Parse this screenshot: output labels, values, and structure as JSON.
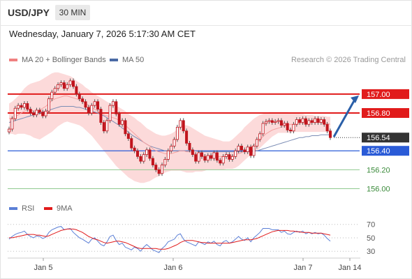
{
  "header": {
    "symbol": "USD/JPY",
    "interval": "30 MIN",
    "datetime": "Wednesday, January 7, 2026 5:17:30 AM CET"
  },
  "legend_main": [
    {
      "label": "MA 20 + Bollinger Bands",
      "color": "#f08080"
    },
    {
      "label": "MA 50",
      "color": "#4a6aa5"
    }
  ],
  "credit": "Research © 2026 Trading Central",
  "legend_rsi": [
    {
      "label": "RSI",
      "color": "#5b7fd6"
    },
    {
      "label": "9MA",
      "color": "#e11b1b"
    }
  ],
  "colors": {
    "resistance": "#e11b1b",
    "support": "#2a5bd7",
    "target": "#3a8a3a",
    "arrow": "#2a5fa8",
    "current": "#333333",
    "band": "#fbd3d3",
    "candle": "#c0141c",
    "candle_wick": "#555555"
  },
  "chart_data": {
    "type": "candlestick",
    "ylim": [
      155.9,
      157.25
    ],
    "y_ticks": [
      157.0,
      156.8,
      156.54,
      156.4,
      156.2,
      156.0
    ],
    "x_ticks": [
      "Jan 5",
      "Jan 6",
      "Jan 7",
      "Jan 14"
    ],
    "price_levels": [
      {
        "value": 157.0,
        "label": "157.00",
        "kind": "resistance"
      },
      {
        "value": 156.8,
        "label": "156.80",
        "kind": "resistance"
      },
      {
        "value": 156.54,
        "label": "156.54",
        "kind": "current"
      },
      {
        "value": 156.4,
        "label": "156.40",
        "kind": "support"
      },
      {
        "value": 156.2,
        "label": "156.20",
        "kind": "target"
      },
      {
        "value": 156.0,
        "label": "156.00",
        "kind": "target"
      }
    ],
    "projection": {
      "from": 156.54,
      "to": 157.0
    },
    "close": [
      156.63,
      156.74,
      156.85,
      156.88,
      156.86,
      156.9,
      156.84,
      156.8,
      156.78,
      156.83,
      156.81,
      156.77,
      156.82,
      156.95,
      157.02,
      157.06,
      157.1,
      157.12,
      157.06,
      157.1,
      157.14,
      157.08,
      157.0,
      156.95,
      156.92,
      156.86,
      156.8,
      156.88,
      156.92,
      156.84,
      156.7,
      156.61,
      156.72,
      156.88,
      156.92,
      156.79,
      156.68,
      156.72,
      156.58,
      156.53,
      156.43,
      156.4,
      156.34,
      156.29,
      156.36,
      156.41,
      156.32,
      156.25,
      156.2,
      156.16,
      156.25,
      156.31,
      156.4,
      156.45,
      156.52,
      156.65,
      156.72,
      156.61,
      156.48,
      156.41,
      156.36,
      156.29,
      156.38,
      156.34,
      156.3,
      156.35,
      156.32,
      156.38,
      156.3,
      156.27,
      156.34,
      156.36,
      156.31,
      156.34,
      156.4,
      156.45,
      156.41,
      156.39,
      156.44,
      156.35,
      156.45,
      156.52,
      156.58,
      156.69,
      156.71,
      156.72,
      156.7,
      156.71,
      156.72,
      156.67,
      156.69,
      156.62,
      156.61,
      156.68,
      156.73,
      156.7,
      156.74,
      156.68,
      156.72,
      156.7,
      156.74,
      156.7,
      156.73,
      156.68,
      156.61,
      156.54
    ],
    "ma20": [
      156.74,
      156.75,
      156.76,
      156.78,
      156.8,
      156.82,
      156.83,
      156.83,
      156.82,
      156.82,
      156.83,
      156.85,
      156.87,
      156.9,
      156.93,
      156.95,
      156.96,
      156.97,
      156.98,
      156.98,
      156.97,
      156.96,
      156.95,
      156.94,
      156.92,
      156.9,
      156.88,
      156.86,
      156.84,
      156.82,
      156.8,
      156.78,
      156.77,
      156.76,
      156.75,
      156.74,
      156.72,
      156.69,
      156.67,
      156.64,
      156.61,
      156.58,
      156.55,
      156.52,
      156.49,
      156.47,
      156.45,
      156.42,
      156.4,
      156.39,
      156.38,
      156.37,
      156.37,
      156.37,
      156.38,
      156.39,
      156.4,
      156.4,
      156.39,
      156.39,
      156.38,
      156.37,
      156.36,
      156.36,
      156.35,
      156.35,
      156.35,
      156.35,
      156.34,
      156.34,
      156.34,
      156.34,
      156.34,
      156.35,
      156.36,
      156.37,
      156.38,
      156.4,
      156.42,
      156.44,
      156.46,
      156.49,
      156.52,
      156.55,
      156.58,
      156.6,
      156.62,
      156.63,
      156.64,
      156.65,
      156.66,
      156.67,
      156.68,
      156.68,
      156.69,
      156.69,
      156.69,
      156.69,
      156.7,
      156.7,
      156.7,
      156.7,
      156.7,
      156.69,
      156.69,
      156.68
    ],
    "ma50": [
      156.7,
      156.71,
      156.72,
      156.73,
      156.74,
      156.75,
      156.76,
      156.77,
      156.78,
      156.79,
      156.8,
      156.81,
      156.82,
      156.83,
      156.84,
      156.85,
      156.86,
      156.87,
      156.87,
      156.87,
      156.87,
      156.87,
      156.86,
      156.86,
      156.85,
      156.84,
      156.83,
      156.82,
      156.81,
      156.8,
      156.78,
      156.77,
      156.75,
      156.73,
      156.71,
      156.69,
      156.67,
      156.64,
      156.62,
      156.6,
      156.57,
      156.55,
      156.53,
      156.51,
      156.49,
      156.47,
      156.45,
      156.44,
      156.43,
      156.42,
      156.41,
      156.4,
      156.4,
      156.4,
      156.4,
      156.4,
      156.4,
      156.4,
      156.4,
      156.4,
      156.4,
      156.4,
      156.39,
      156.39,
      156.39,
      156.39,
      156.39,
      156.39,
      156.39,
      156.39,
      156.39,
      156.39,
      156.39,
      156.39,
      156.39,
      156.39,
      156.39,
      156.39,
      156.39,
      156.39,
      156.4,
      156.4,
      156.41,
      156.42,
      156.43,
      156.44,
      156.45,
      156.46,
      156.47,
      156.48,
      156.49,
      156.5,
      156.51,
      156.52,
      156.53,
      156.54,
      156.54,
      156.55,
      156.55,
      156.56,
      156.56,
      156.56,
      156.57,
      156.57,
      156.57,
      156.57
    ],
    "bb_upper": [
      156.9,
      156.92,
      156.95,
      156.98,
      157.02,
      157.06,
      157.09,
      157.11,
      157.12,
      157.13,
      157.14,
      157.16,
      157.18,
      157.2,
      157.22,
      157.23,
      157.23,
      157.22,
      157.21,
      157.2,
      157.19,
      157.17,
      157.14,
      157.12,
      157.1,
      157.07,
      157.05,
      157.02,
      157.0,
      156.98,
      156.96,
      156.94,
      156.92,
      156.9,
      156.89,
      156.88,
      156.86,
      156.84,
      156.82,
      156.79,
      156.77,
      156.75,
      156.72,
      156.7,
      156.67,
      156.64,
      156.62,
      156.6,
      156.58,
      156.57,
      156.56,
      156.56,
      156.57,
      156.58,
      156.6,
      156.63,
      156.66,
      156.67,
      156.67,
      156.66,
      156.64,
      156.62,
      156.6,
      156.58,
      156.56,
      156.55,
      156.54,
      156.53,
      156.52,
      156.51,
      156.5,
      156.5,
      156.5,
      156.52,
      156.55,
      156.58,
      156.61,
      156.65,
      156.68,
      156.71,
      156.74,
      156.76,
      156.78,
      156.79,
      156.8,
      156.81,
      156.81,
      156.81,
      156.81,
      156.81,
      156.81,
      156.81,
      156.8,
      156.8,
      156.8,
      156.79,
      156.79,
      156.78,
      156.78,
      156.78,
      156.77,
      156.77,
      156.77,
      156.77,
      156.76,
      156.76
    ],
    "bb_lower": [
      156.58,
      156.58,
      156.57,
      156.58,
      156.58,
      156.58,
      156.57,
      156.56,
      156.54,
      156.53,
      156.52,
      156.54,
      156.56,
      156.58,
      156.6,
      156.63,
      156.66,
      156.68,
      156.7,
      156.71,
      156.7,
      156.69,
      156.68,
      156.67,
      156.65,
      156.62,
      156.59,
      156.56,
      156.52,
      156.48,
      156.44,
      156.4,
      156.36,
      156.32,
      156.28,
      156.24,
      156.21,
      156.18,
      156.15,
      156.12,
      156.1,
      156.08,
      156.07,
      156.06,
      156.06,
      156.07,
      156.08,
      156.1,
      156.12,
      156.13,
      156.15,
      156.17,
      156.18,
      156.19,
      156.19,
      156.19,
      156.19,
      156.18,
      156.17,
      156.17,
      156.17,
      156.18,
      156.18,
      156.18,
      156.19,
      156.2,
      156.2,
      156.2,
      156.2,
      156.2,
      156.2,
      156.21,
      156.21,
      156.21,
      156.22,
      156.24,
      156.27,
      156.3,
      156.33,
      156.36,
      156.38,
      156.4,
      156.43,
      156.46,
      156.49,
      156.52,
      156.55,
      156.57,
      156.59,
      156.59,
      156.59,
      156.59,
      156.59,
      156.6,
      156.6,
      156.6,
      156.6,
      156.6,
      156.6,
      156.6,
      156.6,
      156.6,
      156.6,
      156.6,
      156.6,
      156.6
    ],
    "rsi": {
      "ylim": [
        25,
        78
      ],
      "y_ticks": [
        70,
        50,
        30
      ],
      "rsi": [
        48,
        52,
        55,
        57,
        58,
        60,
        55,
        52,
        50,
        53,
        52,
        49,
        51,
        58,
        62,
        64,
        66,
        67,
        62,
        63,
        64,
        58,
        54,
        50,
        48,
        45,
        42,
        48,
        50,
        45,
        40,
        38,
        44,
        52,
        54,
        46,
        40,
        42,
        36,
        34,
        32,
        36,
        34,
        30,
        36,
        40,
        36,
        32,
        30,
        28,
        34,
        38,
        44,
        46,
        48,
        54,
        56,
        48,
        44,
        42,
        40,
        38,
        44,
        42,
        40,
        44,
        42,
        45,
        40,
        38,
        44,
        46,
        42,
        44,
        48,
        52,
        48,
        46,
        50,
        44,
        50,
        54,
        58,
        64,
        64,
        64,
        62,
        62,
        62,
        58,
        60,
        56,
        55,
        58,
        60,
        58,
        60,
        56,
        58,
        56,
        58,
        56,
        57,
        54,
        49,
        45
      ],
      "ma9": [
        50,
        50,
        51,
        52,
        53,
        54,
        55,
        55,
        55,
        54,
        54,
        53,
        52,
        53,
        55,
        57,
        59,
        61,
        62,
        63,
        63,
        63,
        62,
        60,
        58,
        55,
        52,
        50,
        48,
        47,
        45,
        43,
        42,
        43,
        44,
        45,
        45,
        44,
        43,
        41,
        39,
        37,
        35,
        34,
        34,
        34,
        34,
        34,
        34,
        33,
        33,
        33,
        34,
        36,
        38,
        40,
        43,
        45,
        46,
        46,
        46,
        45,
        44,
        43,
        43,
        42,
        42,
        42,
        42,
        42,
        42,
        42,
        42,
        43,
        44,
        45,
        46,
        47,
        47,
        47,
        48,
        49,
        51,
        53,
        55,
        57,
        59,
        60,
        61,
        61,
        61,
        61,
        60,
        60,
        59,
        59,
        58,
        58,
        58,
        57,
        57,
        57,
        57,
        56,
        55,
        54
      ]
    }
  }
}
